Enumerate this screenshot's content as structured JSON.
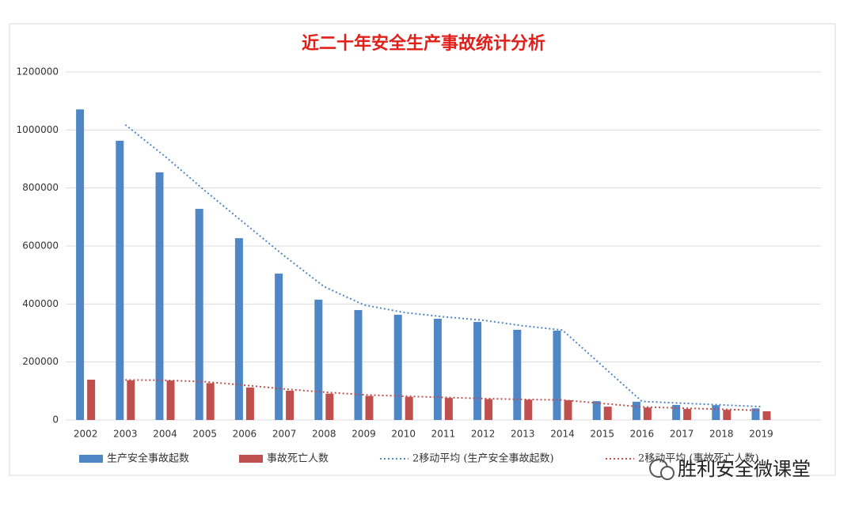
{
  "chart_data": {
    "type": "bar",
    "title": "近二十年安全生产事故统计分析",
    "categories": [
      "2002",
      "2003",
      "2004",
      "2005",
      "2006",
      "2007",
      "2008",
      "2009",
      "2010",
      "2011",
      "2012",
      "2013",
      "2014",
      "2015",
      "2016",
      "2017",
      "2018",
      "2019"
    ],
    "series": [
      {
        "name": "生产安全事故起数",
        "color": "#4f86c6",
        "kind": "bar",
        "values": [
          1071000,
          963000,
          854000,
          728000,
          627000,
          505000,
          415000,
          379000,
          363000,
          349000,
          338000,
          311000,
          308000,
          65000,
          63000,
          52000,
          51000,
          40000
        ]
      },
      {
        "name": "事故死亡人数",
        "color": "#c0504d",
        "kind": "bar",
        "values": [
          139000,
          137000,
          136000,
          127000,
          112000,
          101000,
          91000,
          83000,
          80000,
          76000,
          72000,
          70000,
          68000,
          46000,
          43000,
          38000,
          35000,
          30000
        ]
      },
      {
        "name": "2移动平均 (生产安全事故起数)",
        "color": "#4f86c6",
        "kind": "line",
        "values": [
          null,
          1018000,
          909000,
          791000,
          678000,
          566000,
          460000,
          397000,
          371000,
          356000,
          344000,
          325000,
          310000,
          187000,
          64000,
          58000,
          52000,
          46000
        ]
      },
      {
        "name": "2移动平均 (事故死亡人数)",
        "color": "#c0504d",
        "kind": "line",
        "values": [
          null,
          138000,
          137000,
          132000,
          120000,
          107000,
          96000,
          87000,
          82000,
          78000,
          74000,
          71000,
          69000,
          57000,
          45000,
          41000,
          37000,
          33000
        ]
      }
    ],
    "ylim": [
      0,
      1200000
    ],
    "yticks": [
      0,
      200000,
      400000,
      600000,
      800000,
      1000000,
      1200000
    ],
    "grid": true,
    "legend": "bottom",
    "watermark": "胜利安全微课堂"
  }
}
